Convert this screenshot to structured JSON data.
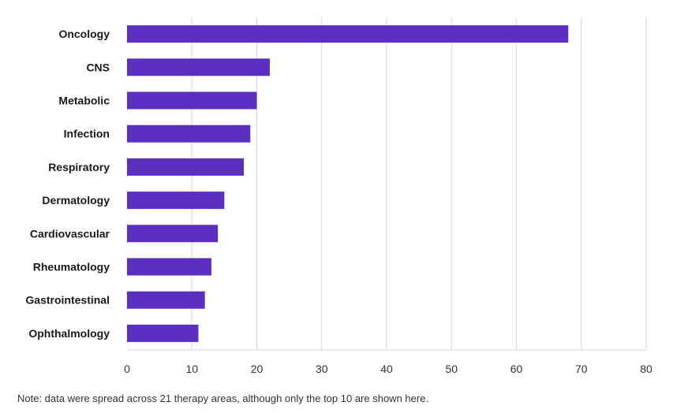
{
  "chart_data": {
    "type": "bar",
    "orientation": "horizontal",
    "categories": [
      "Oncology",
      "CNS",
      "Metabolic",
      "Infection",
      "Respiratory",
      "Dermatology",
      "Cardiovascular",
      "Rheumatology",
      "Gastrointestinal",
      "Ophthalmology"
    ],
    "values": [
      68,
      22,
      20,
      19,
      18,
      15,
      14,
      13,
      12,
      11
    ],
    "xlim": [
      0,
      80
    ],
    "xticks": [
      0,
      10,
      20,
      30,
      40,
      50,
      60,
      70,
      80
    ],
    "grid": "vertical",
    "legend": "none",
    "bar_color": "#5b2fbf",
    "grid_color": "#d9d9d9"
  },
  "note": "Note: data were spread across 21 therapy areas, although only the top 10 are shown here."
}
